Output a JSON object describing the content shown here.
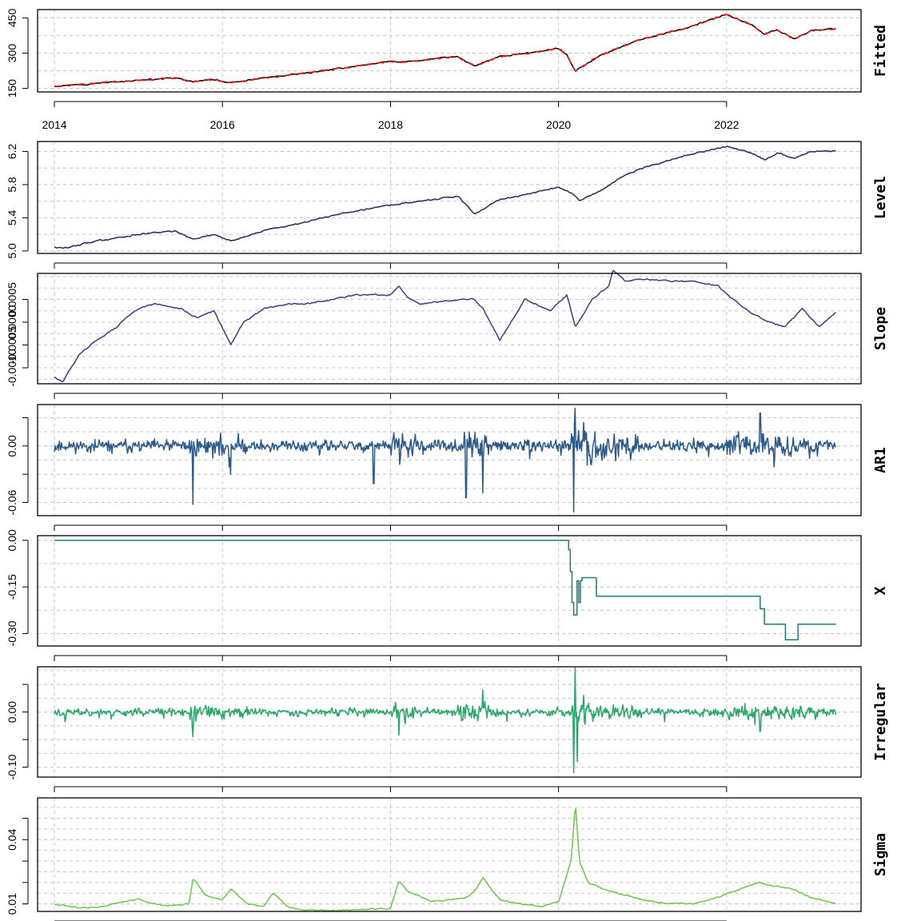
{
  "chart_data": [
    {
      "type": "line",
      "title": "Fitted",
      "time_range": [
        2014.0,
        2023.3
      ],
      "xlim": [
        2013.8,
        2023.6
      ],
      "x_ticks": [
        2014,
        2016,
        2018,
        2020,
        2022
      ],
      "x_tick_labels": [
        "2014",
        "2016",
        "2018",
        "2020",
        "2022"
      ],
      "ylim": [
        135,
        485
      ],
      "y_ticks": [
        150,
        300,
        450
      ],
      "y_tick_labels": [
        "150",
        "300",
        "450"
      ],
      "grid": true,
      "series": [
        {
          "color": "#000000",
          "dash": false,
          "x": [
            2014.0,
            2014.5,
            2015.0,
            2015.45,
            2015.65,
            2015.9,
            2016.1,
            2016.5,
            2017.0,
            2017.5,
            2018.0,
            2018.1,
            2018.5,
            2018.8,
            2019.0,
            2019.3,
            2019.6,
            2020.0,
            2020.1,
            2020.2,
            2020.5,
            2020.8,
            2021.0,
            2021.5,
            2022.0,
            2022.3,
            2022.45,
            2022.6,
            2022.8,
            2023.0,
            2023.3
          ],
          "y": [
            160,
            172,
            185,
            194,
            178,
            188,
            173,
            195,
            215,
            240,
            265,
            260,
            275,
            285,
            245,
            285,
            298,
            320,
            292,
            225,
            290,
            335,
            360,
            405,
            465,
            420,
            380,
            400,
            360,
            395,
            405
          ]
        },
        {
          "color": "#e41a1c",
          "dash": true,
          "x": [
            2014.0,
            2014.5,
            2015.0,
            2015.45,
            2015.65,
            2015.9,
            2016.1,
            2016.5,
            2017.0,
            2017.5,
            2018.0,
            2018.1,
            2018.5,
            2018.8,
            2019.0,
            2019.3,
            2019.6,
            2020.0,
            2020.1,
            2020.2,
            2020.5,
            2020.8,
            2021.0,
            2021.5,
            2022.0,
            2022.3,
            2022.45,
            2022.6,
            2022.8,
            2023.0,
            2023.3
          ],
          "y": [
            160,
            172,
            185,
            194,
            178,
            188,
            173,
            195,
            215,
            240,
            265,
            260,
            275,
            285,
            245,
            285,
            298,
            320,
            292,
            225,
            290,
            335,
            360,
            405,
            465,
            420,
            380,
            400,
            360,
            395,
            405
          ]
        }
      ]
    },
    {
      "type": "line",
      "title": "Level",
      "time_range": [
        2014.0,
        2023.3
      ],
      "xlim": [
        2013.8,
        2023.6
      ],
      "ylim": [
        4.97,
        6.32
      ],
      "y_ticks": [
        5.0,
        5.4,
        5.8,
        6.2
      ],
      "y_tick_labels": [
        "5.0",
        "5.4",
        "5.8",
        "6.2"
      ],
      "grid": true,
      "series": [
        {
          "color": "#3b1f5e",
          "x": [
            2014.0,
            2014.1,
            2014.5,
            2015.0,
            2015.45,
            2015.65,
            2015.9,
            2016.1,
            2016.5,
            2017.0,
            2017.5,
            2018.0,
            2018.5,
            2018.8,
            2019.0,
            2019.3,
            2019.6,
            2020.0,
            2020.15,
            2020.25,
            2020.5,
            2020.8,
            2021.0,
            2021.5,
            2022.0,
            2022.3,
            2022.45,
            2022.6,
            2022.8,
            2023.0,
            2023.3
          ],
          "y": [
            5.05,
            5.03,
            5.12,
            5.2,
            5.24,
            5.14,
            5.2,
            5.12,
            5.25,
            5.35,
            5.47,
            5.55,
            5.62,
            5.66,
            5.45,
            5.62,
            5.68,
            5.77,
            5.7,
            5.6,
            5.73,
            5.92,
            6.0,
            6.15,
            6.26,
            6.18,
            6.1,
            6.18,
            6.12,
            6.2,
            6.2
          ]
        }
      ]
    },
    {
      "type": "line",
      "title": "Slope",
      "time_range": [
        2014.0,
        2023.3
      ],
      "xlim": [
        2013.8,
        2023.6
      ],
      "ylim": [
        -0.00135,
        0.00107
      ],
      "y_ticks": [
        -0.001,
        -0.0005,
        0.0,
        0.0005
      ],
      "y_tick_labels": [
        "-0.0010",
        "-0.0005",
        "0.0000",
        "0.0005"
      ],
      "grid": true,
      "series": [
        {
          "color": "#3f3b8a",
          "x": [
            2014.0,
            2014.1,
            2014.3,
            2014.5,
            2014.75,
            2014.85,
            2015.0,
            2015.2,
            2015.5,
            2015.7,
            2015.9,
            2016.1,
            2016.25,
            2016.5,
            2016.8,
            2017.0,
            2017.3,
            2017.6,
            2018.0,
            2018.1,
            2018.2,
            2018.35,
            2018.6,
            2018.8,
            2019.0,
            2019.1,
            2019.3,
            2019.6,
            2019.9,
            2020.1,
            2020.2,
            2020.4,
            2020.6,
            2020.65,
            2020.8,
            2021.0,
            2021.3,
            2021.6,
            2021.9,
            2022.0,
            2022.15,
            2022.3,
            2022.5,
            2022.7,
            2022.9,
            2023.1,
            2023.3
          ],
          "y": [
            -0.0012,
            -0.0013,
            -0.0007,
            -0.0004,
            -0.0001,
            0.0001,
            0.0003,
            0.0004,
            0.0003,
            0.0001,
            0.00025,
            -0.0005,
            0.0,
            0.0003,
            0.0004,
            0.0004,
            0.0005,
            0.0006,
            0.0006,
            0.0008,
            0.00055,
            0.0004,
            0.00045,
            0.0005,
            0.0005,
            0.0003,
            -0.0004,
            0.0005,
            0.00025,
            0.0006,
            -0.0001,
            0.0005,
            0.0008,
            0.00115,
            0.0009,
            0.00095,
            0.0009,
            0.0009,
            0.0008,
            0.0006,
            0.0004,
            0.0002,
            0.0,
            -0.0001,
            0.0003,
            -0.0001,
            0.0002
          ]
        }
      ]
    },
    {
      "type": "line",
      "title": "AR1",
      "time_range": [
        2014.0,
        2023.3
      ],
      "xlim": [
        2013.8,
        2023.6
      ],
      "ylim": [
        -0.074,
        0.044
      ],
      "y_ticks": [
        -0.06,
        -0.03,
        0.0,
        0.03
      ],
      "y_tick_labels": [
        "-0.06",
        "",
        "0.00",
        ""
      ],
      "grid": true,
      "series": [
        {
          "color": "#2c5a8c",
          "kind": "noise",
          "seed": 11,
          "amplitude": 0.009,
          "clip": [
            -0.07,
            0.04
          ],
          "spikes": [
            [
              2015.65,
              -0.062
            ],
            [
              2016.1,
              -0.03
            ],
            [
              2017.8,
              -0.04
            ],
            [
              2018.9,
              -0.055
            ],
            [
              2019.1,
              -0.05
            ],
            [
              2020.18,
              -0.07
            ],
            [
              2020.2,
              0.04
            ],
            [
              2020.3,
              0.025
            ],
            [
              2022.4,
              0.035
            ]
          ]
        }
      ]
    },
    {
      "type": "line",
      "title": "X",
      "time_range": [
        2014.0,
        2023.3
      ],
      "xlim": [
        2013.8,
        2023.6
      ],
      "ylim": [
        -0.34,
        0.015
      ],
      "y_ticks": [
        0.0,
        -0.15,
        -0.3
      ],
      "y_tick_labels": [
        "0.00",
        "-0.15",
        "-0.30"
      ],
      "grid": true,
      "series": [
        {
          "color": "#1f7d7d",
          "step": true,
          "x": [
            2014.0,
            2020.1,
            2020.12,
            2020.14,
            2020.16,
            2020.18,
            2020.2,
            2020.22,
            2020.24,
            2020.26,
            2020.28,
            2020.3,
            2020.45,
            2022.4,
            2022.45,
            2022.7,
            2022.85,
            2023.3
          ],
          "y": [
            0.0,
            0.0,
            -0.03,
            -0.1,
            -0.2,
            -0.24,
            -0.24,
            -0.13,
            -0.2,
            -0.13,
            -0.12,
            -0.12,
            -0.18,
            -0.22,
            -0.27,
            -0.32,
            -0.27,
            -0.27
          ]
        }
      ]
    },
    {
      "type": "line",
      "title": "Irregular",
      "time_range": [
        2014.0,
        2023.3
      ],
      "xlim": [
        2013.8,
        2023.6
      ],
      "ylim": [
        -0.118,
        0.082
      ],
      "y_ticks": [
        0.05,
        0.0,
        -0.05,
        -0.1
      ],
      "y_tick_labels": [
        "",
        "0.00",
        "",
        "-0.10"
      ],
      "grid": true,
      "series": [
        {
          "color": "#2aa86a",
          "kind": "noise",
          "seed": 23,
          "amplitude": 0.01,
          "clip": [
            -0.11,
            0.08
          ],
          "spikes": [
            [
              2015.65,
              -0.045
            ],
            [
              2018.1,
              -0.042
            ],
            [
              2019.1,
              0.04
            ],
            [
              2020.18,
              -0.11
            ],
            [
              2020.2,
              0.08
            ],
            [
              2020.22,
              -0.09
            ],
            [
              2020.3,
              0.03
            ],
            [
              2022.4,
              -0.035
            ]
          ]
        }
      ]
    },
    {
      "type": "line",
      "title": "Sigma",
      "time_range": [
        2014.0,
        2023.3
      ],
      "xlim": [
        2013.8,
        2023.6
      ],
      "ylim": [
        0.0065,
        0.0595
      ],
      "y_ticks": [
        0.01,
        0.02,
        0.03,
        0.04,
        0.05
      ],
      "y_tick_labels": [
        "0.01",
        "",
        "",
        "0.04",
        ""
      ],
      "grid": true,
      "series": [
        {
          "color": "#6ac94a",
          "x": [
            2014.0,
            2014.3,
            2014.6,
            2014.8,
            2015.0,
            2015.3,
            2015.6,
            2015.65,
            2015.8,
            2016.0,
            2016.1,
            2016.3,
            2016.5,
            2016.6,
            2016.8,
            2017.0,
            2017.5,
            2018.0,
            2018.1,
            2018.2,
            2018.5,
            2018.9,
            2019.0,
            2019.1,
            2019.3,
            2019.5,
            2019.8,
            2020.0,
            2020.15,
            2020.2,
            2020.25,
            2020.35,
            2020.6,
            2020.8,
            2021.0,
            2021.3,
            2021.6,
            2021.9,
            2022.1,
            2022.3,
            2022.4,
            2022.6,
            2022.8,
            2023.0,
            2023.3
          ],
          "y": [
            0.01,
            0.008,
            0.009,
            0.011,
            0.012,
            0.009,
            0.01,
            0.022,
            0.014,
            0.012,
            0.017,
            0.01,
            0.009,
            0.015,
            0.008,
            0.007,
            0.007,
            0.008,
            0.021,
            0.016,
            0.011,
            0.013,
            0.016,
            0.022,
            0.012,
            0.01,
            0.009,
            0.011,
            0.03,
            0.057,
            0.03,
            0.02,
            0.016,
            0.014,
            0.012,
            0.01,
            0.01,
            0.013,
            0.016,
            0.019,
            0.02,
            0.018,
            0.017,
            0.013,
            0.01
          ]
        }
      ]
    }
  ]
}
